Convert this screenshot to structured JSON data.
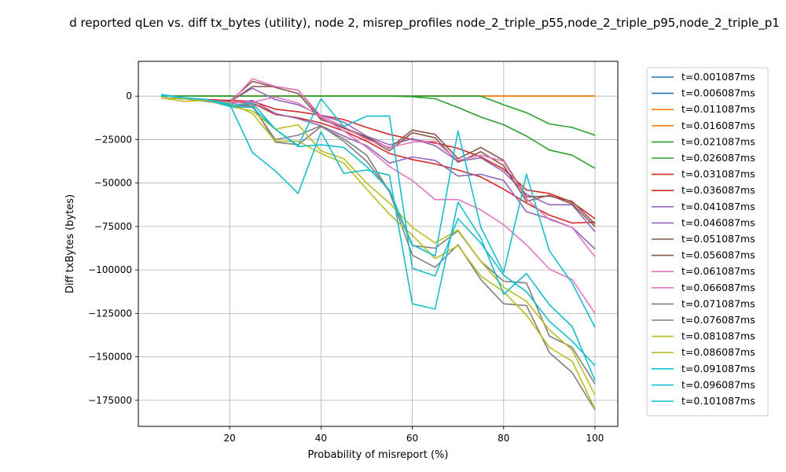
{
  "chart_data": {
    "type": "line",
    "title": "d reported qLen vs. diff tx_bytes (utility), node 2, misrep_profiles node_2_triple_p55,node_2_triple_p95,node_2_triple_p1",
    "xlabel": "Probability of misreport (%)",
    "ylabel": "Diff txBytes (bytes)",
    "xlim": [
      0,
      105
    ],
    "ylim": [
      -190000,
      20000
    ],
    "xticks": [
      20,
      40,
      60,
      80,
      100
    ],
    "yticks": [
      0,
      -25000,
      -50000,
      -75000,
      -100000,
      -125000,
      -150000,
      -175000
    ],
    "grid": true,
    "legend_position": "outside-right",
    "x": [
      5,
      10,
      15,
      20,
      25,
      30,
      35,
      40,
      45,
      50,
      55,
      60,
      65,
      70,
      75,
      80,
      85,
      90,
      95,
      100
    ],
    "series": [
      {
        "name": "t=0.001087ms",
        "color": "#1f77b4",
        "values": [
          0,
          0,
          0,
          0,
          0,
          0,
          0,
          0,
          0,
          0,
          0,
          0,
          0,
          0,
          0,
          0,
          0,
          0,
          0,
          0
        ]
      },
      {
        "name": "t=0.006087ms",
        "color": "#1f77b4",
        "values": [
          0,
          0,
          0,
          0,
          0,
          0,
          0,
          0,
          0,
          0,
          0,
          0,
          0,
          0,
          0,
          0,
          0,
          0,
          0,
          0
        ]
      },
      {
        "name": "t=0.011087ms",
        "color": "#ff7f0e",
        "values": [
          0,
          0,
          0,
          0,
          0,
          0,
          0,
          0,
          0,
          0,
          0,
          0,
          0,
          0,
          0,
          0,
          0,
          0,
          0,
          0
        ]
      },
      {
        "name": "t=0.016087ms",
        "color": "#ff7f0e",
        "values": [
          0,
          0,
          0,
          0,
          0,
          0,
          0,
          0,
          0,
          0,
          0,
          0,
          0,
          0,
          0,
          0,
          0,
          0,
          0,
          0
        ]
      },
      {
        "name": "t=0.021087ms",
        "color": "#2ca02c",
        "values": [
          0,
          0,
          0,
          0,
          0,
          0,
          0,
          0,
          0,
          0,
          0,
          0,
          0,
          0,
          0,
          -5000,
          -9500,
          -16000,
          -18000,
          -22500
        ]
      },
      {
        "name": "t=0.026087ms",
        "color": "#2ca02c",
        "values": [
          0,
          0,
          0,
          0,
          0,
          0,
          0,
          0,
          0,
          0,
          0,
          -300,
          -1500,
          -6500,
          -12000,
          -16500,
          -23000,
          -31000,
          -34000,
          -41500
        ]
      },
      {
        "name": "t=0.031087ms",
        "color": "#d62728",
        "values": [
          -1000,
          -1500,
          -2000,
          -2500,
          -3000,
          -7500,
          -9000,
          -11000,
          -13500,
          -18000,
          -22000,
          -25000,
          -27000,
          -30000,
          -35000,
          -42000,
          -54000,
          -56000,
          -61000,
          -70500
        ]
      },
      {
        "name": "t=0.036087ms",
        "color": "#d62728",
        "values": [
          -1000,
          -1500,
          -2500,
          -3500,
          -4000,
          -10500,
          -12500,
          -15500,
          -20000,
          -26000,
          -33000,
          -36500,
          -39000,
          -42500,
          -46500,
          -53500,
          -61500,
          -68500,
          -73000,
          -72500
        ]
      },
      {
        "name": "t=0.041087ms",
        "color": "#9467bd",
        "values": [
          -1000,
          -1500,
          -2500,
          -3000,
          4500,
          -2000,
          -5000,
          -11000,
          -15000,
          -23000,
          -28000,
          -24500,
          -28500,
          -37500,
          -35500,
          -43500,
          -56500,
          -62500,
          -62500,
          -78000
        ]
      },
      {
        "name": "t=0.046087ms",
        "color": "#9467bd",
        "values": [
          -1000,
          -1500,
          -3000,
          -4500,
          -2500,
          -10000,
          -13000,
          -17000,
          -23000,
          -28500,
          -38500,
          -35000,
          -37000,
          -46000,
          -45000,
          -48500,
          -66500,
          -70500,
          -75500,
          -88000
        ]
      },
      {
        "name": "t=0.051087ms",
        "color": "#8c564b",
        "values": [
          -1000,
          -1500,
          -2500,
          -3000,
          8500,
          5000,
          1500,
          -13500,
          -18000,
          -23500,
          -30000,
          -19500,
          -22000,
          -36000,
          -29500,
          -37000,
          -58000,
          -57500,
          -60500,
          -73500
        ]
      },
      {
        "name": "t=0.056087ms",
        "color": "#8c564b",
        "values": [
          -1000,
          -1500,
          -2500,
          -3500,
          5500,
          5500,
          3500,
          -12500,
          -18500,
          -24000,
          -31500,
          -21000,
          -24000,
          -38000,
          -32000,
          -40000,
          -60500,
          -57000,
          -62000,
          -75000
        ]
      },
      {
        "name": "t=0.061087ms",
        "color": "#e377c2",
        "values": [
          -1000,
          -1500,
          -2500,
          -4000,
          10000,
          5500,
          3500,
          -11500,
          -17500,
          -25000,
          -29500,
          -26500,
          -26000,
          -37000,
          -34000,
          -37500,
          -59000,
          -71000,
          -75500,
          -92500
        ]
      },
      {
        "name": "t=0.066087ms",
        "color": "#e377c2",
        "values": [
          -1000,
          -1500,
          -2500,
          -3500,
          -3500,
          -500,
          -4000,
          -12000,
          -20000,
          -29500,
          -40500,
          -48500,
          -59500,
          -59500,
          -65500,
          -74000,
          -85500,
          -99500,
          -105500,
          -125000
        ]
      },
      {
        "name": "t=0.071087ms",
        "color": "#7f7f7f",
        "values": [
          -1000,
          -1500,
          -3000,
          -5000,
          -5000,
          -26500,
          -28000,
          -17500,
          -24500,
          -34000,
          -55000,
          -91500,
          -98500,
          -85500,
          -105500,
          -119500,
          -120500,
          -147500,
          -159000,
          -180500
        ]
      },
      {
        "name": "t=0.076087ms",
        "color": "#7f7f7f",
        "values": [
          -1000,
          -1500,
          -3000,
          -5000,
          -6000,
          -25000,
          -22500,
          -17000,
          -26000,
          -37500,
          -55000,
          -86000,
          -87500,
          -77500,
          -95000,
          -106500,
          -107500,
          -138000,
          -144500,
          -165500
        ]
      },
      {
        "name": "t=0.081087ms",
        "color": "#bcbd22",
        "values": [
          -1000,
          -1500,
          -2500,
          -4000,
          -10000,
          -26000,
          -26000,
          -33000,
          -38500,
          -53500,
          -68000,
          -80000,
          -93500,
          -86000,
          -103500,
          -112500,
          -126000,
          -144500,
          -152500,
          -180000
        ]
      },
      {
        "name": "t=0.086087ms",
        "color": "#bcbd22",
        "values": [
          -1000,
          -3000,
          -2500,
          -6000,
          -8500,
          -19000,
          -16500,
          -31500,
          -36000,
          -50000,
          -61500,
          -75500,
          -84500,
          -77000,
          -95000,
          -110000,
          -118000,
          -134500,
          -146000,
          -172000
        ]
      },
      {
        "name": "t=0.091087ms",
        "color": "#17becf",
        "values": [
          500,
          -1000,
          -2000,
          -4500,
          -32500,
          -43000,
          -56000,
          -20500,
          -44500,
          -42500,
          -45500,
          -119500,
          -122500,
          -61000,
          -81500,
          -114000,
          -102000,
          -120000,
          -132500,
          -163500
        ]
      },
      {
        "name": "t=0.096087ms",
        "color": "#17becf",
        "values": [
          500,
          -1000,
          -2000,
          -6000,
          -6500,
          -19000,
          -29000,
          -28000,
          -29500,
          -40500,
          -54000,
          -85500,
          -92000,
          -20000,
          -75500,
          -101500,
          -45000,
          -89000,
          -107500,
          -133000
        ]
      },
      {
        "name": "t=0.101087ms",
        "color": "#17becf",
        "values": [
          1000,
          -1000,
          -2000,
          -5500,
          -4000,
          -19000,
          -28500,
          -1500,
          -17500,
          -11500,
          -11500,
          -99000,
          -103500,
          -70500,
          -84500,
          -103000,
          -112500,
          -129500,
          -141000,
          -155000
        ]
      }
    ]
  }
}
